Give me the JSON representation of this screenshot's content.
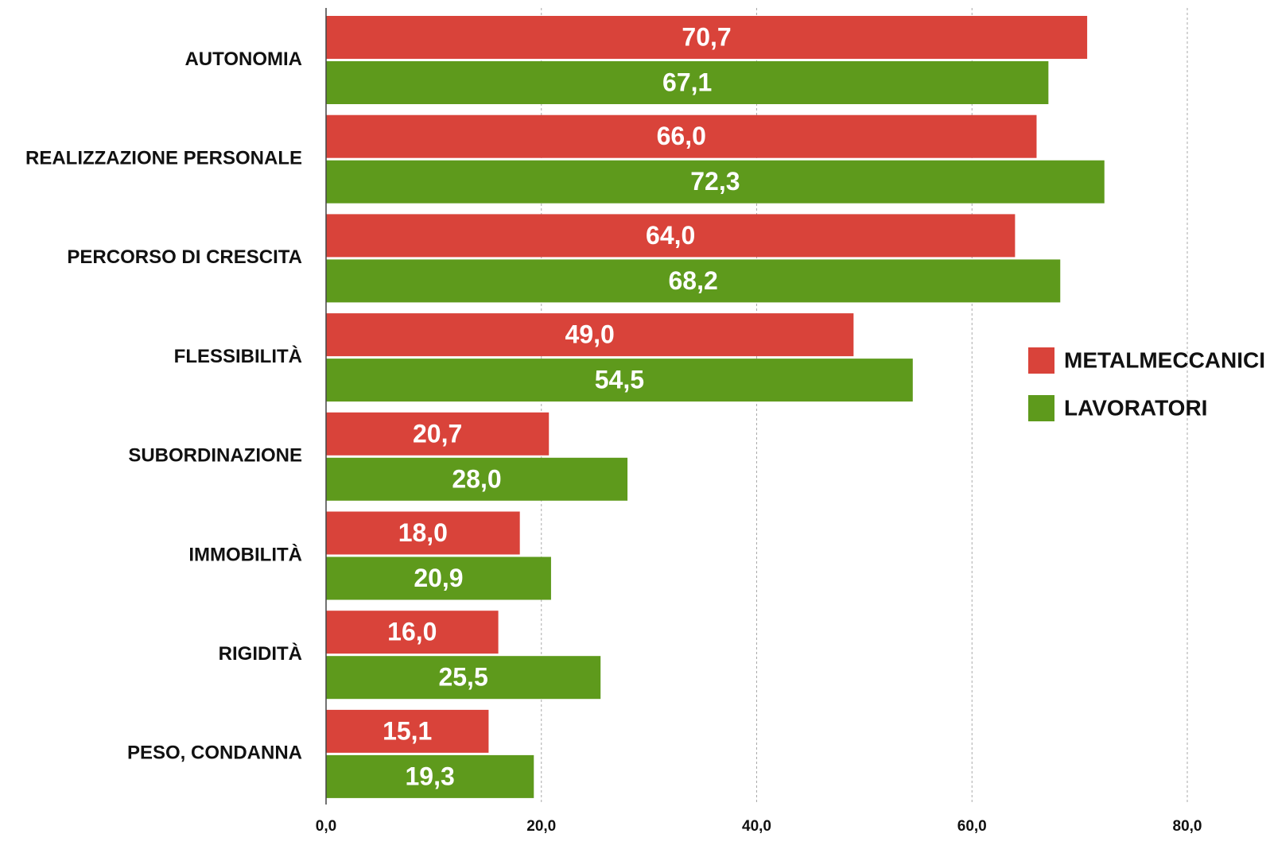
{
  "chart_data": {
    "type": "bar",
    "orientation": "horizontal",
    "categories": [
      "AUTONOMIA",
      "REALIZZAZIONE PERSONALE",
      "PERCORSO DI CRESCITA",
      "FLESSIBILITÀ",
      "SUBORDINAZIONE",
      "IMMOBILITÀ",
      "RIGIDITÀ",
      "PESO, CONDANNA"
    ],
    "series": [
      {
        "name": "METALMECCANICI",
        "color": "#d9433a",
        "values": [
          70.7,
          66.0,
          64.0,
          49.0,
          20.7,
          18.0,
          16.0,
          15.1
        ],
        "value_labels": [
          "70,7",
          "66,0",
          "64,0",
          "49,0",
          "20,7",
          "18,0",
          "16,0",
          "15,1"
        ]
      },
      {
        "name": "LAVORATORI",
        "color": "#5e9a1c",
        "values": [
          67.1,
          72.3,
          68.2,
          54.5,
          28.0,
          20.9,
          25.5,
          19.3
        ],
        "value_labels": [
          "67,1",
          "72,3",
          "68,2",
          "54,5",
          "28,0",
          "20,9",
          "25,5",
          "19,3"
        ]
      }
    ],
    "xlim": [
      0,
      80
    ],
    "xticks": [
      {
        "value": 0,
        "label": "0,0"
      },
      {
        "value": 20,
        "label": "20,0"
      },
      {
        "value": 40,
        "label": "40,0"
      },
      {
        "value": 60,
        "label": "60,0"
      },
      {
        "value": 80,
        "label": "80,0"
      }
    ],
    "grid": true,
    "legend": "right"
  }
}
